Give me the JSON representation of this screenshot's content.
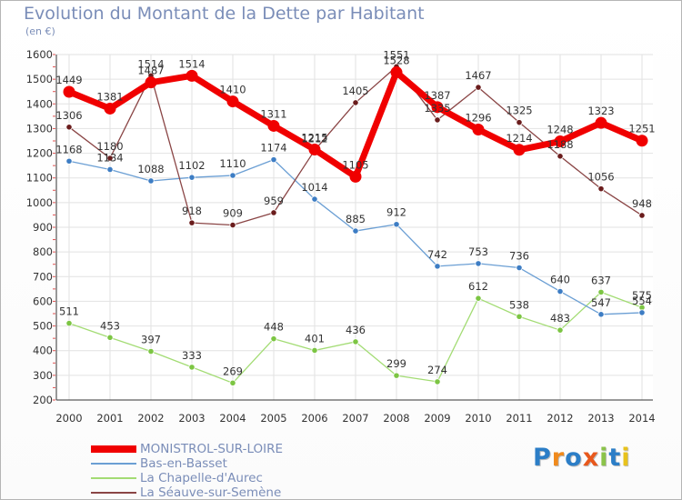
{
  "header": {
    "title": "Evolution du Montant de la Dette par Habitant",
    "unit": "(en €)"
  },
  "logo": {
    "text": "Proxiti",
    "letters": [
      "P",
      "r",
      "o",
      "x",
      "i",
      "t",
      "i"
    ],
    "colors": [
      "#2c7ec7",
      "#f08a1c",
      "#2c7ec7",
      "#e8581c",
      "#8bc34a",
      "#2c7ec7",
      "#e8c21c"
    ]
  },
  "chart_data": {
    "type": "line",
    "title": "Evolution du Montant de la Dette par Habitant",
    "ylabel": "(en €)",
    "x": [
      "2000",
      "2001",
      "2002",
      "2003",
      "2004",
      "2005",
      "2006",
      "2007",
      "2008",
      "2009",
      "2010",
      "2011",
      "2012",
      "2013",
      "2014"
    ],
    "ylim": [
      200,
      1600
    ],
    "yticks": [
      200,
      300,
      400,
      500,
      600,
      700,
      800,
      900,
      1000,
      1100,
      1200,
      1300,
      1400,
      1500,
      1600
    ],
    "grid": true,
    "legend_position": "bottom-left",
    "series": [
      {
        "name": "MONISTROL-SUR-LOIRE",
        "color": "#f00000",
        "marker": "#f00000",
        "values": [
          1449,
          1381,
          1487,
          1514,
          1410,
          1311,
          1215,
          1105,
          1528,
          1387,
          1296,
          1214,
          1248,
          1323,
          1251
        ]
      },
      {
        "name": "Bas-en-Basset",
        "color": "#6b9fd4",
        "marker": "#3d7dc4",
        "values": [
          1168,
          1134,
          1088,
          1102,
          1110,
          1174,
          1014,
          885,
          912,
          742,
          753,
          736,
          640,
          547,
          554
        ]
      },
      {
        "name": "La Chapelle-d'Aurec",
        "color": "#a3dc74",
        "marker": "#7cc543",
        "values": [
          511,
          453,
          397,
          333,
          269,
          448,
          401,
          436,
          299,
          274,
          612,
          538,
          483,
          637,
          575
        ]
      },
      {
        "name": "La Séauve-sur-Semène",
        "color": "#8a4545",
        "marker": "#6a1c1c",
        "values": [
          1306,
          1180,
          1514,
          918,
          909,
          959,
          1212,
          1405,
          1551,
          1335,
          1467,
          1325,
          1188,
          1056,
          948
        ]
      }
    ]
  }
}
